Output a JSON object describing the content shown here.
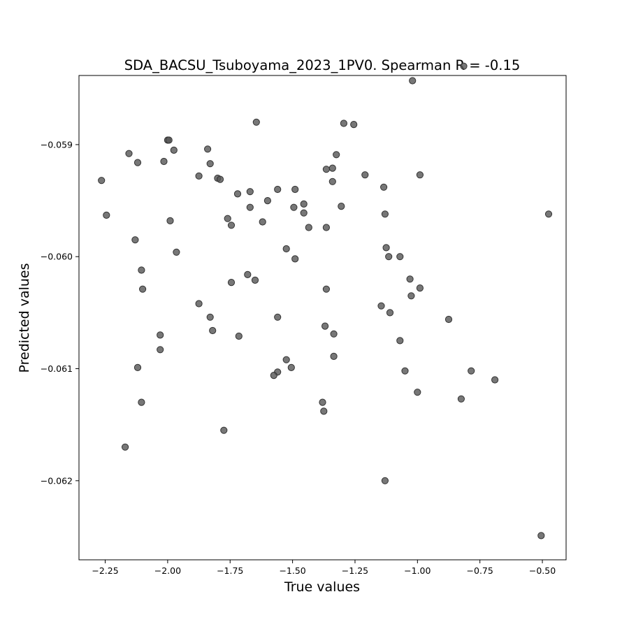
{
  "chart_data": {
    "type": "scatter",
    "title": "SDA_BACSU_Tsuboyama_2023_1PV0. Spearman R = -0.15",
    "xlabel": "True values",
    "ylabel": "Predicted values",
    "xlim": [
      -2.355,
      -0.405
    ],
    "ylim": [
      -0.062706,
      -0.058383
    ],
    "xticks": [
      -2.25,
      -2.0,
      -1.75,
      -1.5,
      -1.25,
      -1.0,
      -0.75,
      -0.5
    ],
    "xtick_labels": [
      "−2.25",
      "−2.00",
      "−1.75",
      "−1.50",
      "−1.25",
      "−1.00",
      "−0.75",
      "−0.50"
    ],
    "yticks": [
      -0.059,
      -0.06,
      -0.061,
      -0.062
    ],
    "ytick_labels": [
      "−0.059",
      "−0.060",
      "−0.061",
      "−0.062"
    ],
    "grid": false,
    "marker_color": "#555555",
    "points": [
      {
        "x": -2.265,
        "y": -0.05932
      },
      {
        "x": -2.245,
        "y": -0.05963
      },
      {
        "x": -2.155,
        "y": -0.05908
      },
      {
        "x": -2.12,
        "y": -0.05916
      },
      {
        "x": -2.015,
        "y": -0.05915
      },
      {
        "x": -2.0,
        "y": -0.05896
      },
      {
        "x": -1.995,
        "y": -0.05896
      },
      {
        "x": -1.975,
        "y": -0.05905
      },
      {
        "x": -2.13,
        "y": -0.05985
      },
      {
        "x": -1.99,
        "y": -0.05968
      },
      {
        "x": -1.965,
        "y": -0.05996
      },
      {
        "x": -2.105,
        "y": -0.06012
      },
      {
        "x": -2.1,
        "y": -0.06029
      },
      {
        "x": -2.03,
        "y": -0.0607
      },
      {
        "x": -2.03,
        "y": -0.06083
      },
      {
        "x": -2.12,
        "y": -0.06099
      },
      {
        "x": -2.105,
        "y": -0.0613
      },
      {
        "x": -2.17,
        "y": -0.0617
      },
      {
        "x": -1.875,
        "y": -0.05928
      },
      {
        "x": -1.84,
        "y": -0.05904
      },
      {
        "x": -1.83,
        "y": -0.05917
      },
      {
        "x": -1.8,
        "y": -0.0593
      },
      {
        "x": -1.79,
        "y": -0.05931
      },
      {
        "x": -1.72,
        "y": -0.05944
      },
      {
        "x": -1.67,
        "y": -0.05942
      },
      {
        "x": -1.67,
        "y": -0.05956
      },
      {
        "x": -1.76,
        "y": -0.05966
      },
      {
        "x": -1.745,
        "y": -0.05972
      },
      {
        "x": -1.645,
        "y": -0.0588
      },
      {
        "x": -1.6,
        "y": -0.0595
      },
      {
        "x": -1.56,
        "y": -0.0594
      },
      {
        "x": -1.62,
        "y": -0.05969
      },
      {
        "x": -1.875,
        "y": -0.06042
      },
      {
        "x": -1.83,
        "y": -0.06054
      },
      {
        "x": -1.82,
        "y": -0.06066
      },
      {
        "x": -1.715,
        "y": -0.06071
      },
      {
        "x": -1.68,
        "y": -0.06016
      },
      {
        "x": -1.745,
        "y": -0.06023
      },
      {
        "x": -1.65,
        "y": -0.06021
      },
      {
        "x": -1.56,
        "y": -0.06054
      },
      {
        "x": -1.525,
        "y": -0.05993
      },
      {
        "x": -1.49,
        "y": -0.06002
      },
      {
        "x": -1.49,
        "y": -0.0594
      },
      {
        "x": -1.495,
        "y": -0.05956
      },
      {
        "x": -1.455,
        "y": -0.05953
      },
      {
        "x": -1.455,
        "y": -0.05961
      },
      {
        "x": -1.435,
        "y": -0.05974
      },
      {
        "x": -1.525,
        "y": -0.06092
      },
      {
        "x": -1.505,
        "y": -0.06099
      },
      {
        "x": -1.56,
        "y": -0.06103
      },
      {
        "x": -1.575,
        "y": -0.06106
      },
      {
        "x": -1.775,
        "y": -0.06155
      },
      {
        "x": -1.38,
        "y": -0.0613
      },
      {
        "x": -1.375,
        "y": -0.06138
      },
      {
        "x": -1.365,
        "y": -0.05922
      },
      {
        "x": -1.34,
        "y": -0.05921
      },
      {
        "x": -1.325,
        "y": -0.05909
      },
      {
        "x": -1.34,
        "y": -0.05933
      },
      {
        "x": -1.365,
        "y": -0.05974
      },
      {
        "x": -1.305,
        "y": -0.05955
      },
      {
        "x": -1.295,
        "y": -0.05881
      },
      {
        "x": -1.255,
        "y": -0.05882
      },
      {
        "x": -1.21,
        "y": -0.05927
      },
      {
        "x": -1.135,
        "y": -0.05938
      },
      {
        "x": -1.13,
        "y": -0.05962
      },
      {
        "x": -1.365,
        "y": -0.06029
      },
      {
        "x": -1.37,
        "y": -0.06062
      },
      {
        "x": -1.335,
        "y": -0.06069
      },
      {
        "x": -1.335,
        "y": -0.06089
      },
      {
        "x": -1.145,
        "y": -0.06044
      },
      {
        "x": -1.11,
        "y": -0.0605
      },
      {
        "x": -1.125,
        "y": -0.05992
      },
      {
        "x": -1.115,
        "y": -0.06
      },
      {
        "x": -1.07,
        "y": -0.06
      },
      {
        "x": -1.07,
        "y": -0.06075
      },
      {
        "x": -1.05,
        "y": -0.06102
      },
      {
        "x": -1.13,
        "y": -0.062
      },
      {
        "x": -1.02,
        "y": -0.05843
      },
      {
        "x": -0.815,
        "y": -0.0583
      },
      {
        "x": -0.99,
        "y": -0.05927
      },
      {
        "x": -1.03,
        "y": -0.0602
      },
      {
        "x": -0.99,
        "y": -0.06028
      },
      {
        "x": -1.025,
        "y": -0.06035
      },
      {
        "x": -0.875,
        "y": -0.06056
      },
      {
        "x": -1.0,
        "y": -0.06121
      },
      {
        "x": -0.825,
        "y": -0.06127
      },
      {
        "x": -0.785,
        "y": -0.06102
      },
      {
        "x": -0.69,
        "y": -0.0611
      },
      {
        "x": -0.475,
        "y": -0.05962
      },
      {
        "x": -0.505,
        "y": -0.06249
      }
    ]
  }
}
